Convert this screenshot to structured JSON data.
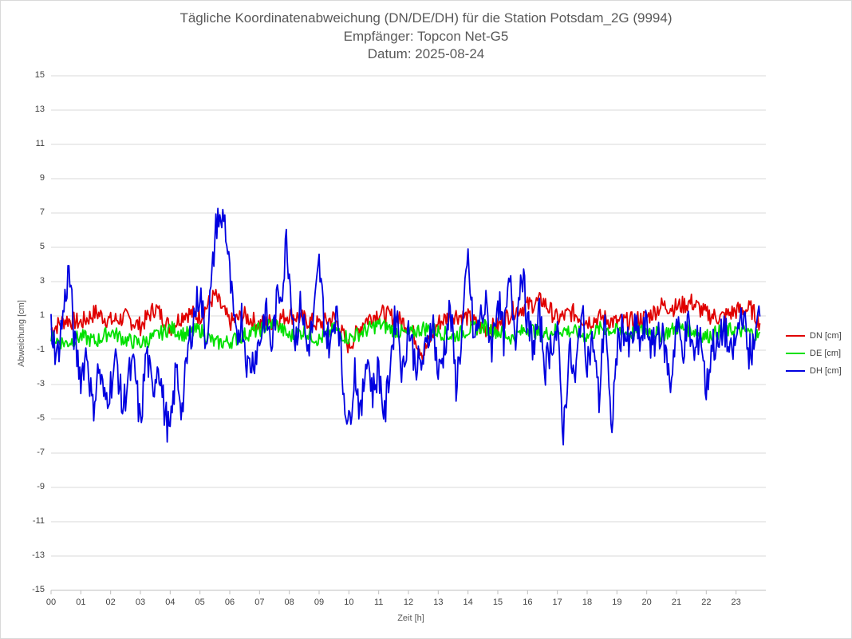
{
  "chart_data": {
    "type": "line",
    "title": "Tägliche Koordinatenabweichung (DN/DE/DH) für die Station Potsdam_2G (9994)",
    "subtitle_1": "Empfänger: Topcon Net-G5",
    "subtitle_2": "Datum: 2025-08-24",
    "xlabel": "Zeit [h]",
    "ylabel": "Abweichung [cm]",
    "xlim": [
      0,
      24
    ],
    "ylim": [
      -15,
      15
    ],
    "x_ticks": [
      "00",
      "01",
      "02",
      "03",
      "04",
      "05",
      "06",
      "07",
      "08",
      "09",
      "10",
      "11",
      "12",
      "13",
      "14",
      "15",
      "16",
      "17",
      "18",
      "19",
      "20",
      "21",
      "22",
      "23"
    ],
    "y_ticks": [
      "15",
      "13",
      "11",
      "9",
      "7",
      "5",
      "3",
      "1",
      "-1",
      "-3",
      "-5",
      "-7",
      "-9",
      "-11",
      "-13",
      "-15"
    ],
    "legend_position": "right",
    "series": [
      {
        "name": "DN [cm]",
        "color": "#e00000",
        "x": [
          0,
          0.5,
          1,
          1.5,
          2,
          2.5,
          3,
          3.5,
          4,
          4.5,
          5,
          5.5,
          6,
          6.5,
          7,
          7.5,
          8,
          8.5,
          9,
          9.5,
          10,
          10.5,
          11,
          11.5,
          12,
          12.5,
          13,
          13.5,
          14,
          14.5,
          15,
          15.5,
          16,
          16.5,
          17,
          17.5,
          18,
          18.5,
          19,
          19.5,
          20,
          20.5,
          21,
          21.5,
          22,
          22.5,
          23,
          23.5,
          23.8
        ],
        "y": [
          0.2,
          0.8,
          0.6,
          1.2,
          0.7,
          0.9,
          0.4,
          1.5,
          0.3,
          1.2,
          1.0,
          2.2,
          0.6,
          1.0,
          0.5,
          0.7,
          1.1,
          0.8,
          0.5,
          0.9,
          -0.8,
          0.7,
          1.2,
          0.9,
          0.5,
          -1.2,
          0.6,
          1.1,
          0.9,
          0.2,
          0.4,
          1.3,
          1.6,
          1.9,
          0.8,
          1.2,
          0.7,
          0.9,
          0.6,
          0.7,
          0.9,
          1.6,
          1.5,
          1.8,
          1.1,
          0.9,
          1.3,
          1.4,
          0.6
        ]
      },
      {
        "name": "DE [cm]",
        "color": "#00e000",
        "x": [
          0,
          0.5,
          1,
          1.5,
          2,
          2.5,
          3,
          3.5,
          4,
          4.5,
          5,
          5.5,
          6,
          6.5,
          7,
          7.5,
          8,
          8.5,
          9,
          9.5,
          10,
          10.5,
          11,
          11.5,
          12,
          12.5,
          13,
          13.5,
          14,
          14.5,
          15,
          15.5,
          16,
          16.5,
          17,
          17.5,
          18,
          18.5,
          19,
          19.5,
          20,
          20.5,
          21,
          21.5,
          22,
          22.5,
          23,
          23.5,
          23.8
        ],
        "y": [
          -0.3,
          -0.6,
          -0.2,
          -0.5,
          0.1,
          -0.4,
          -0.6,
          -0.2,
          0.3,
          -0.1,
          0.2,
          -0.6,
          -0.5,
          -0.1,
          0.2,
          0.6,
          -0.2,
          0.1,
          -0.4,
          0.2,
          -0.3,
          0.1,
          0.5,
          0.2,
          -0.1,
          0.3,
          0.1,
          -0.2,
          0.2,
          0.4,
          0.1,
          -0.3,
          0.3,
          -0.1,
          0.2,
          0.1,
          -0.2,
          0.3,
          0.1,
          0.0,
          0.2,
          -0.1,
          0.3,
          0.2,
          -0.2,
          0.1,
          0.2,
          0.0,
          -0.2
        ]
      },
      {
        "name": "DH [cm]",
        "color": "#0000e0",
        "x": [
          0,
          0.2,
          0.4,
          0.6,
          0.8,
          1,
          1.2,
          1.4,
          1.6,
          1.8,
          2,
          2.2,
          2.4,
          2.6,
          2.8,
          3,
          3.2,
          3.4,
          3.6,
          3.8,
          4,
          4.2,
          4.4,
          4.6,
          4.8,
          5,
          5.2,
          5.4,
          5.5,
          5.6,
          5.7,
          5.8,
          6,
          6.2,
          6.4,
          6.6,
          6.8,
          7,
          7.2,
          7.4,
          7.6,
          7.8,
          7.9,
          8,
          8.2,
          8.4,
          8.6,
          8.8,
          9,
          9.2,
          9.4,
          9.6,
          9.8,
          10,
          10.2,
          10.4,
          10.6,
          10.8,
          11,
          11.2,
          11.4,
          11.6,
          11.8,
          12,
          12.2,
          12.4,
          12.6,
          12.8,
          13,
          13.2,
          13.4,
          13.6,
          13.8,
          14,
          14.2,
          14.4,
          14.6,
          14.8,
          15,
          15.2,
          15.4,
          15.6,
          15.8,
          16,
          16.2,
          16.4,
          16.6,
          16.8,
          17,
          17.2,
          17.4,
          17.6,
          17.8,
          18,
          18.2,
          18.4,
          18.6,
          18.8,
          19,
          19.2,
          19.4,
          19.6,
          19.8,
          20,
          20.2,
          20.4,
          20.6,
          20.8,
          21,
          21.2,
          21.4,
          21.6,
          21.8,
          22,
          22.2,
          22.4,
          22.6,
          22.8,
          23,
          23.2,
          23.4,
          23.6,
          23.8
        ],
        "y": [
          0.5,
          -1.5,
          1.0,
          3.8,
          -0.8,
          -2.5,
          -1.0,
          -4.5,
          -2.0,
          -4.0,
          -3.0,
          -1.5,
          -4.5,
          -2.5,
          -2.0,
          -5.5,
          -1.0,
          -3.5,
          -1.5,
          -4.5,
          -6.0,
          -2.0,
          -4.5,
          -1.0,
          1.0,
          2.5,
          -0.5,
          3.0,
          5.5,
          7.0,
          6.0,
          7.2,
          3.3,
          -0.5,
          1.0,
          -2.0,
          -1.5,
          -0.5,
          1.3,
          -0.8,
          2.0,
          3.0,
          5.6,
          3.5,
          -0.5,
          1.8,
          -1.0,
          0.5,
          4.0,
          0.2,
          -0.8,
          2.0,
          -3.0,
          -5.5,
          -2.0,
          -5.0,
          -1.0,
          -3.5,
          -2.0,
          -5.0,
          -1.5,
          1.5,
          -2.5,
          0.5,
          -1.5,
          -2.0,
          -1.0,
          1.0,
          -2.5,
          -1.0,
          1.5,
          -3.0,
          0.0,
          4.3,
          -0.5,
          0.8,
          1.5,
          -0.8,
          2.2,
          -0.3,
          3.0,
          0.0,
          4.0,
          0.5,
          -0.8,
          1.0,
          -2.0,
          -0.5,
          0.0,
          -5.8,
          -1.0,
          -3.0,
          1.5,
          -1.5,
          -0.5,
          -4.0,
          1.5,
          -6.0,
          -1.0,
          0.5,
          -1.0,
          0.2,
          -0.5,
          0.5,
          -1.0,
          0.3,
          -0.8,
          -3.0,
          0.6,
          -1.0,
          0.5,
          -1.5,
          0.3,
          -3.5,
          -0.5,
          -1.0,
          0.5,
          -1.5,
          -0.5,
          1.5,
          -1.0,
          -1.0,
          1.5
        ]
      }
    ]
  }
}
